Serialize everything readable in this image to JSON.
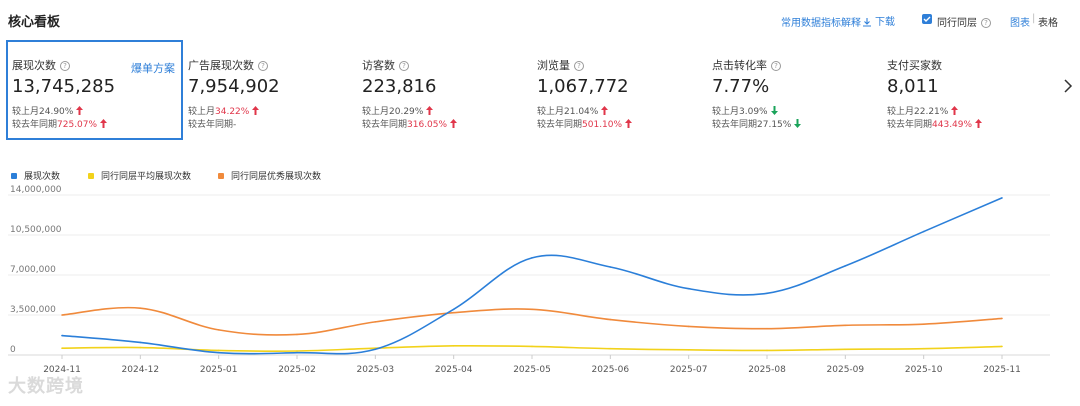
{
  "header": {
    "title": "核心看板",
    "definition_link": "常用数据指标解释",
    "download_label": "下载",
    "peer_checkbox_label": "同行同层",
    "peer_checked": true,
    "view_chart": "图表",
    "view_separator": "|",
    "view_table": "表格"
  },
  "metrics": [
    {
      "label": "展现次数",
      "help": true,
      "value": "13,745,285",
      "action": "爆单方案",
      "selected": true,
      "mom_prefix": "较上月",
      "mom": "24.90%",
      "mom_dir": "up",
      "mom_color": "gray",
      "yoy_prefix": "较去年同期",
      "yoy": "725.07%",
      "yoy_dir": "up",
      "yoy_color": "red"
    },
    {
      "label": "广告展现次数",
      "help": true,
      "value": "7,954,902",
      "action": "",
      "selected": false,
      "mom_prefix": "较上月",
      "mom": "34.22%",
      "mom_dir": "up",
      "mom_color": "red",
      "yoy_prefix": "较去年同期",
      "yoy": "-",
      "yoy_dir": "none",
      "yoy_color": "gray"
    },
    {
      "label": "访客数",
      "help": true,
      "value": "223,816",
      "action": "",
      "selected": false,
      "mom_prefix": "较上月",
      "mom": "20.29%",
      "mom_dir": "up",
      "mom_color": "gray",
      "yoy_prefix": "较去年同期",
      "yoy": "316.05%",
      "yoy_dir": "up",
      "yoy_color": "red"
    },
    {
      "label": "浏览量",
      "help": true,
      "value": "1,067,772",
      "action": "",
      "selected": false,
      "mom_prefix": "较上月",
      "mom": "21.04%",
      "mom_dir": "up",
      "mom_color": "gray",
      "yoy_prefix": "较去年同期",
      "yoy": "501.10%",
      "yoy_dir": "up",
      "yoy_color": "red"
    },
    {
      "label": "点击转化率",
      "help": true,
      "value": "7.77%",
      "action": "",
      "selected": false,
      "mom_prefix": "较上月",
      "mom": "3.09%",
      "mom_dir": "down",
      "mom_color": "gray",
      "yoy_prefix": "较去年同期",
      "yoy": "27.15%",
      "yoy_dir": "down",
      "yoy_color": "gray"
    },
    {
      "label": "支付买家数",
      "help": false,
      "value": "8,011",
      "action": "",
      "selected": false,
      "mom_prefix": "较上月",
      "mom": "22.21%",
      "mom_dir": "up",
      "mom_color": "gray",
      "yoy_prefix": "较去年同期",
      "yoy": "443.49%",
      "yoy_dir": "up",
      "yoy_color": "red"
    }
  ],
  "colors": {
    "accent": "#2f7fd8",
    "up": "#e0364a",
    "down": "#1aa35a",
    "series1": "#2b7fd9",
    "series2": "#f2d21b",
    "series3": "#f08a3c"
  },
  "chart_data": {
    "type": "line",
    "title": "",
    "xlabel": "",
    "ylabel": "",
    "categories": [
      "2024-11",
      "2024-12",
      "2025-01",
      "2025-02",
      "2025-03",
      "2025-04",
      "2025-05",
      "2025-06",
      "2025-07",
      "2025-08",
      "2025-09",
      "2025-10",
      "2025-11"
    ],
    "yticks": [
      0,
      3500000,
      7000000,
      10500000,
      14000000
    ],
    "ytick_labels": [
      "0",
      "3,500,000",
      "7,000,000",
      "10,500,000",
      "14,000,000"
    ],
    "ylim": [
      0,
      14000000
    ],
    "grid": true,
    "legend_position": "top-left",
    "series": [
      {
        "name": "展现次数",
        "values": [
          1700000,
          1100000,
          200000,
          200000,
          500000,
          4000000,
          8500000,
          7700000,
          5800000,
          5400000,
          7800000,
          10800000,
          13745285
        ]
      },
      {
        "name": "同行同层平均展现次数",
        "values": [
          600000,
          650000,
          400000,
          350000,
          600000,
          800000,
          750000,
          550000,
          450000,
          400000,
          500000,
          550000,
          750000
        ]
      },
      {
        "name": "同行同层优秀展现次数",
        "values": [
          3500000,
          4100000,
          2200000,
          1800000,
          2900000,
          3700000,
          4000000,
          3100000,
          2500000,
          2300000,
          2600000,
          2700000,
          3200000
        ]
      }
    ]
  },
  "watermark": "大数跨境"
}
